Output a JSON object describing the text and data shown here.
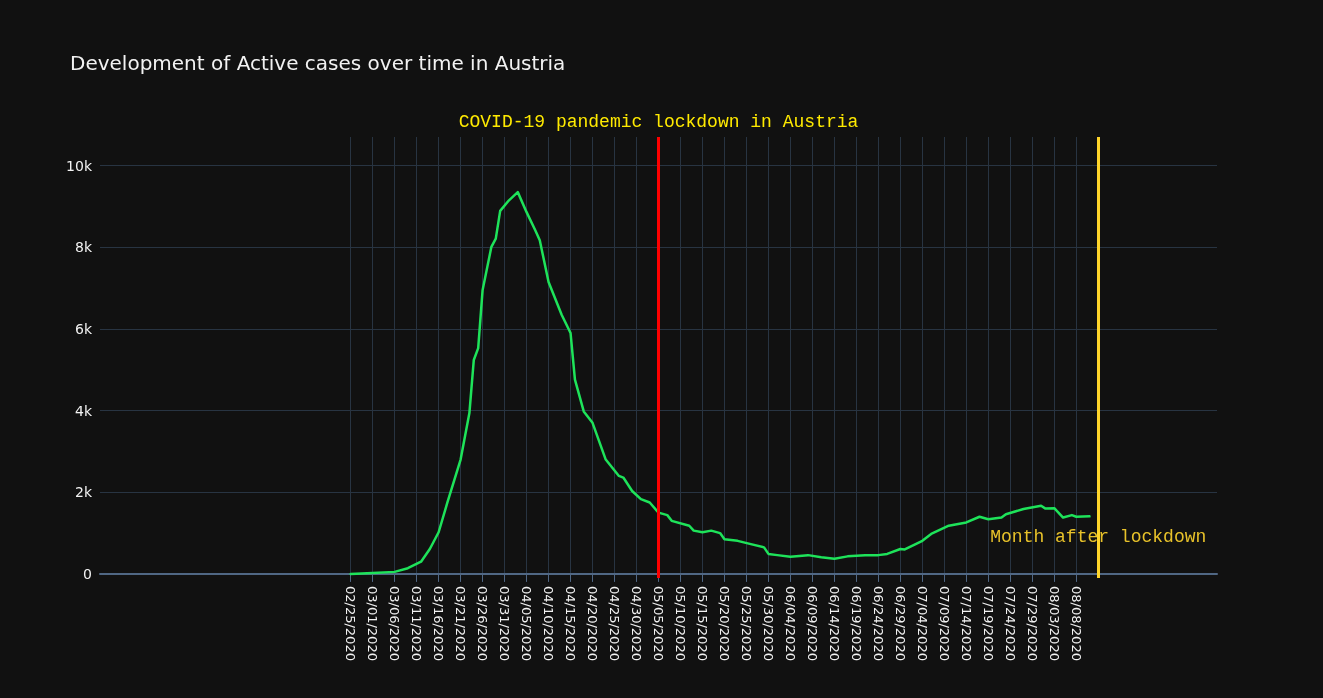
{
  "chart_data": {
    "type": "line",
    "title": "Development of Active cases over time in Austria",
    "xlim": [
      "2019-12-30",
      "2020-09-09"
    ],
    "xticks": [
      {
        "value": "2020-02-25",
        "label": "02/25/2020"
      },
      {
        "value": "2020-03-01",
        "label": "03/01/2020"
      },
      {
        "value": "2020-03-06",
        "label": "03/06/2020"
      },
      {
        "value": "2020-03-11",
        "label": "03/11/2020"
      },
      {
        "value": "2020-03-16",
        "label": "03/16/2020"
      },
      {
        "value": "2020-03-21",
        "label": "03/21/2020"
      },
      {
        "value": "2020-03-26",
        "label": "03/26/2020"
      },
      {
        "value": "2020-03-31",
        "label": "03/31/2020"
      },
      {
        "value": "2020-04-05",
        "label": "04/05/2020"
      },
      {
        "value": "2020-04-10",
        "label": "04/10/2020"
      },
      {
        "value": "2020-04-15",
        "label": "04/15/2020"
      },
      {
        "value": "2020-04-20",
        "label": "04/20/2020"
      },
      {
        "value": "2020-04-25",
        "label": "04/25/2020"
      },
      {
        "value": "2020-04-30",
        "label": "04/30/2020"
      },
      {
        "value": "2020-05-05",
        "label": "05/05/2020"
      },
      {
        "value": "2020-05-10",
        "label": "05/10/2020"
      },
      {
        "value": "2020-05-15",
        "label": "05/15/2020"
      },
      {
        "value": "2020-05-20",
        "label": "05/20/2020"
      },
      {
        "value": "2020-05-25",
        "label": "05/25/2020"
      },
      {
        "value": "2020-05-30",
        "label": "05/30/2020"
      },
      {
        "value": "2020-06-04",
        "label": "06/04/2020"
      },
      {
        "value": "2020-06-09",
        "label": "06/09/2020"
      },
      {
        "value": "2020-06-14",
        "label": "06/14/2020"
      },
      {
        "value": "2020-06-19",
        "label": "06/19/2020"
      },
      {
        "value": "2020-06-24",
        "label": "06/24/2020"
      },
      {
        "value": "2020-06-29",
        "label": "06/29/2020"
      },
      {
        "value": "2020-07-04",
        "label": "07/04/2020"
      },
      {
        "value": "2020-07-09",
        "label": "07/09/2020"
      },
      {
        "value": "2020-07-14",
        "label": "07/14/2020"
      },
      {
        "value": "2020-07-19",
        "label": "07/19/2020"
      },
      {
        "value": "2020-07-24",
        "label": "07/24/2020"
      },
      {
        "value": "2020-07-29",
        "label": "07/29/2020"
      },
      {
        "value": "2020-08-03",
        "label": "08/03/2020"
      },
      {
        "value": "2020-08-08",
        "label": "08/08/2020"
      }
    ],
    "ylim": [
      -100,
      10700
    ],
    "yticks": [
      0,
      {
        "value": 2000,
        "label": "2k"
      },
      {
        "value": 4000,
        "label": "4k"
      },
      {
        "value": 6000,
        "label": "6k"
      },
      {
        "value": 8000,
        "label": "8k"
      },
      {
        "value": 10000,
        "label": "10k"
      }
    ],
    "grid": true,
    "marker": "none",
    "line_style": "solid",
    "series": [
      {
        "color": "#1ee35a",
        "x": [
          "2020-02-25",
          "2020-03-01",
          "2020-03-06",
          "2020-03-09",
          "2020-03-12",
          "2020-03-14",
          "2020-03-16",
          "2020-03-18",
          "2020-03-21",
          "2020-03-23",
          "2020-03-24",
          "2020-03-25",
          "2020-03-26",
          "2020-03-28",
          "2020-03-29",
          "2020-03-30",
          "2020-04-01",
          "2020-04-03",
          "2020-04-05",
          "2020-04-07",
          "2020-04-08",
          "2020-04-10",
          "2020-04-13",
          "2020-04-15",
          "2020-04-16",
          "2020-04-18",
          "2020-04-20",
          "2020-04-23",
          "2020-04-26",
          "2020-04-27",
          "2020-04-29",
          "2020-05-01",
          "2020-05-03",
          "2020-05-05",
          "2020-05-07",
          "2020-05-08",
          "2020-05-12",
          "2020-05-13",
          "2020-05-15",
          "2020-05-17",
          "2020-05-19",
          "2020-05-20",
          "2020-05-23",
          "2020-05-26",
          "2020-05-29",
          "2020-05-30",
          "2020-06-01",
          "2020-06-04",
          "2020-06-08",
          "2020-06-11",
          "2020-06-14",
          "2020-06-17",
          "2020-06-21",
          "2020-06-24",
          "2020-06-26",
          "2020-06-29",
          "2020-06-30",
          "2020-07-04",
          "2020-07-06",
          "2020-07-10",
          "2020-07-14",
          "2020-07-17",
          "2020-07-19",
          "2020-07-22",
          "2020-07-23",
          "2020-07-27",
          "2020-07-31",
          "2020-08-01",
          "2020-08-03",
          "2020-08-05",
          "2020-08-07",
          "2020-08-08",
          "2020-08-11"
        ],
        "values": [
          0,
          20,
          50,
          140,
          300,
          610,
          1020,
          1750,
          2800,
          3940,
          5240,
          5530,
          6950,
          8010,
          8210,
          8890,
          9150,
          9350,
          8860,
          8410,
          8170,
          7150,
          6340,
          5900,
          4760,
          3980,
          3700,
          2800,
          2400,
          2360,
          2030,
          1830,
          1750,
          1500,
          1440,
          1300,
          1180,
          1060,
          1020,
          1060,
          1000,
          850,
          810,
          730,
          650,
          490,
          460,
          420,
          460,
          410,
          370,
          430,
          460,
          460,
          490,
          610,
          600,
          810,
          980,
          1180,
          1260,
          1400,
          1340,
          1380,
          1460,
          1590,
          1670,
          1600,
          1610,
          1380,
          1440,
          1400,
          1410
        ]
      }
    ],
    "ref_lines": [
      {
        "axis": "x",
        "value": "2020-05-05",
        "label": "COVID-19 pandemic lockdown in Austria",
        "color": "#ff0000"
      },
      {
        "axis": "x",
        "value": "2020-08-13",
        "label": "Month after lockdown",
        "color": "#ffd52a"
      }
    ]
  }
}
